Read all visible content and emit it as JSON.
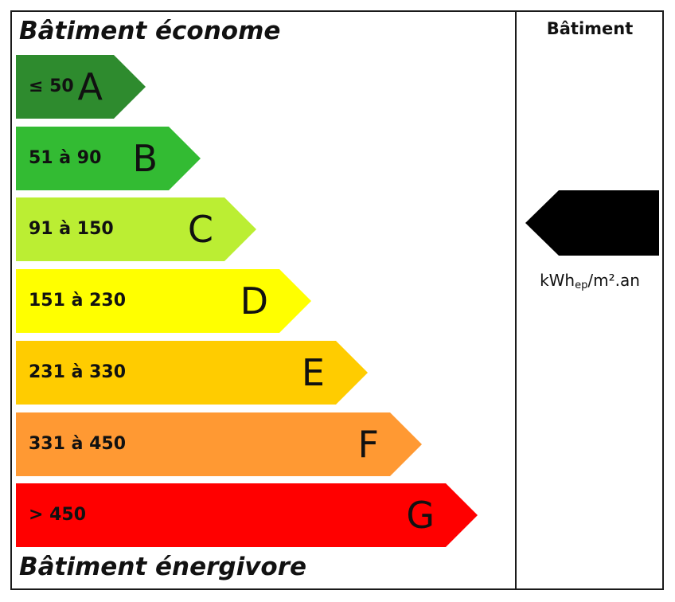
{
  "labels": {
    "top_heading": "Bâtiment économe",
    "bottom_heading": "Bâtiment énergivore",
    "column_title": "Bâtiment",
    "unit_main": "kWh",
    "unit_sub": "ep",
    "unit_tail": "/m².an"
  },
  "classes": [
    {
      "letter": "A",
      "range": "≤ 50",
      "color": "#2e8b2e"
    },
    {
      "letter": "B",
      "range": "51 à 90",
      "color": "#33bb33"
    },
    {
      "letter": "C",
      "range": "91 à 150",
      "color": "#bbee33"
    },
    {
      "letter": "D",
      "range": "151 à 230",
      "color": "#ffff00"
    },
    {
      "letter": "E",
      "range": "231 à 330",
      "color": "#ffcc00"
    },
    {
      "letter": "F",
      "range": "331 à 450",
      "color": "#ff9933"
    },
    {
      "letter": "G",
      "range": "> 450",
      "color": "#ff0000"
    }
  ],
  "marker_color": "#000000"
}
